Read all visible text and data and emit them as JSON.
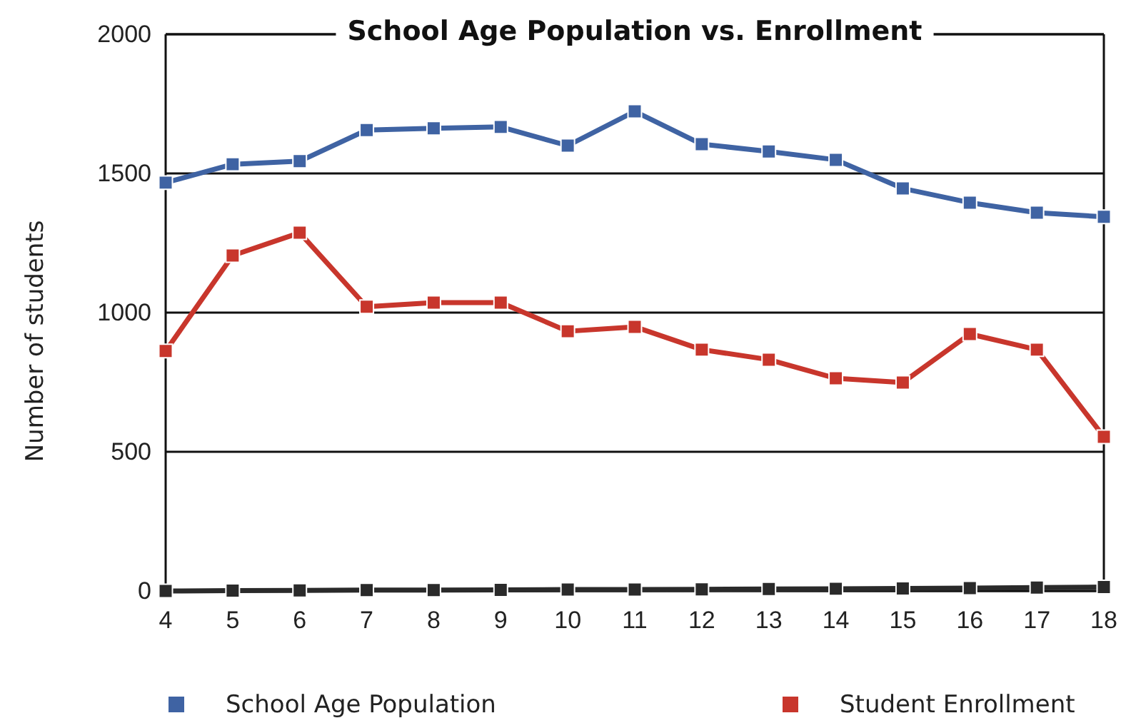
{
  "chart_data": {
    "type": "line",
    "title": "School Age Population vs. Enrollment",
    "ylabel": "Number of students",
    "x": [
      4,
      5,
      6,
      7,
      8,
      9,
      10,
      11,
      12,
      13,
      14,
      15,
      16,
      17,
      18
    ],
    "xlim": [
      4,
      18
    ],
    "xticks": [
      4,
      5,
      6,
      7,
      8,
      9,
      10,
      11,
      12,
      13,
      14,
      15,
      16,
      17,
      18
    ],
    "ylim": [
      0,
      2000
    ],
    "yticks": [
      0,
      500,
      1000,
      1500,
      2000
    ],
    "grid": "y",
    "legend": "bottom",
    "marker": "square",
    "line_style": "solid",
    "series": [
      {
        "name": "School Age Population",
        "color": "#3f63a3",
        "values": [
          1467,
          1533,
          1544,
          1656,
          1662,
          1667,
          1600,
          1723,
          1605,
          1579,
          1549,
          1446,
          1395,
          1359,
          1344
        ]
      },
      {
        "name": "Student Enrollment",
        "color": "#c8362c",
        "values": [
          862,
          1205,
          1287,
          1021,
          1036,
          1036,
          933,
          949,
          867,
          831,
          764,
          749,
          923,
          867,
          554
        ]
      },
      {
        "color": "#2a2a2a",
        "values": [
          0,
          1,
          2,
          3,
          3,
          4,
          5,
          5,
          6,
          7,
          8,
          9,
          10,
          12,
          14
        ]
      }
    ]
  }
}
